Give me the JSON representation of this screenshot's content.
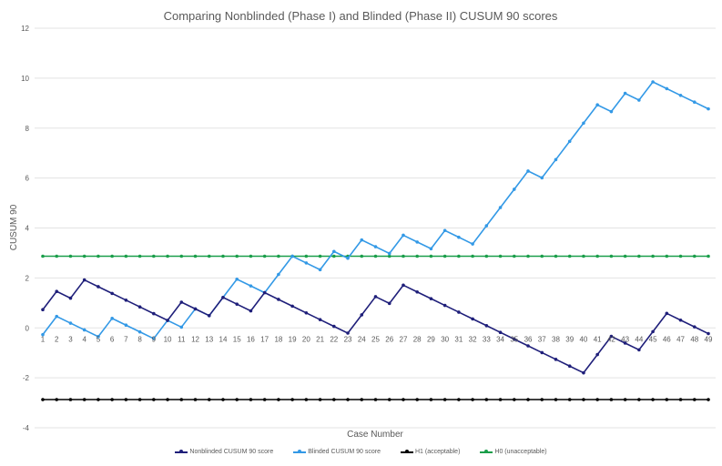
{
  "chart_data": {
    "type": "line",
    "title": "Comparing Nonblinded (Phase I) and Blinded (Phase II) CUSUM 90 scores",
    "xlabel": "Case Number",
    "ylabel": "CUSUM 90",
    "ylim": [
      -4,
      12
    ],
    "yticks": [
      -4,
      -2,
      0,
      2,
      4,
      6,
      8,
      10,
      12
    ],
    "grid": true,
    "legend": "bottom",
    "x": [
      1,
      2,
      3,
      4,
      5,
      6,
      7,
      8,
      9,
      10,
      11,
      12,
      13,
      14,
      15,
      16,
      17,
      18,
      19,
      20,
      21,
      22,
      23,
      24,
      25,
      26,
      27,
      28,
      29,
      30,
      31,
      32,
      33,
      34,
      35,
      36,
      37,
      38,
      39,
      40,
      41,
      42,
      43,
      44,
      45,
      46,
      47,
      48,
      49
    ],
    "series": [
      {
        "name": "Nonblinded CUSUM 90 score",
        "color": "#1f1f7a",
        "values": [
          0.73,
          1.46,
          1.19,
          1.92,
          1.65,
          1.38,
          1.11,
          0.84,
          0.57,
          0.3,
          1.03,
          0.76,
          0.49,
          1.22,
          0.95,
          0.68,
          1.41,
          1.14,
          0.87,
          0.6,
          0.33,
          0.06,
          -0.21,
          0.52,
          1.25,
          0.98,
          1.71,
          1.44,
          1.17,
          0.9,
          0.63,
          0.36,
          0.09,
          -0.18,
          -0.45,
          -0.72,
          -0.99,
          -1.26,
          -1.53,
          -1.8,
          -1.07,
          -0.34,
          -0.61,
          -0.88,
          -0.15,
          0.58,
          0.31,
          0.04,
          -0.23
        ]
      },
      {
        "name": "Blinded CUSUM 90 score",
        "color": "#3399e6",
        "values": [
          -0.27,
          0.46,
          0.19,
          -0.08,
          -0.35,
          0.38,
          0.11,
          -0.16,
          -0.43,
          0.3,
          0.03,
          0.76,
          0.49,
          1.22,
          1.95,
          1.68,
          1.41,
          2.14,
          2.87,
          2.6,
          2.33,
          3.06,
          2.79,
          3.52,
          3.25,
          2.98,
          3.71,
          3.44,
          3.17,
          3.9,
          3.63,
          3.36,
          4.09,
          4.82,
          5.55,
          6.28,
          6.01,
          6.74,
          7.47,
          8.2,
          8.93,
          8.66,
          9.39,
          9.12,
          9.85,
          9.58,
          9.31,
          9.04,
          8.77
        ]
      },
      {
        "name": "H1 (acceptable)",
        "color": "#000000",
        "constant": -2.87
      },
      {
        "name": "H0 (unacceptable)",
        "color": "#1a9e4a",
        "constant": 2.87
      }
    ]
  }
}
